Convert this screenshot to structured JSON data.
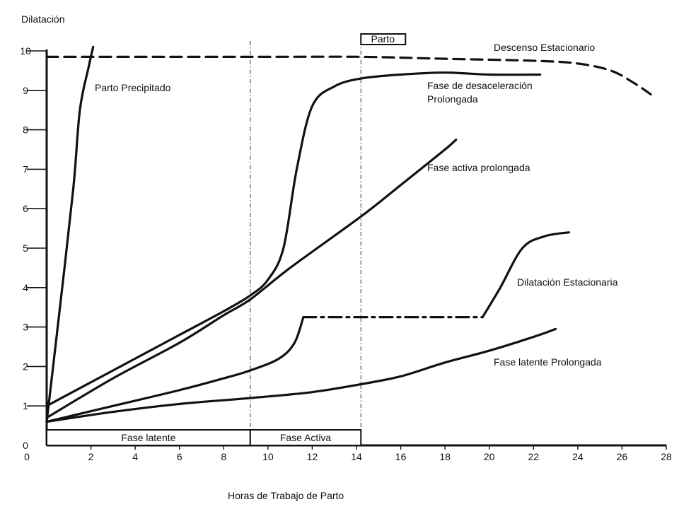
{
  "chart_data": {
    "type": "line",
    "ylabel": "Dilatación",
    "xlabel": "Horas de Trabajo de Parto",
    "xlim": [
      0,
      28
    ],
    "ylim": [
      0,
      10
    ],
    "x_ticks": [
      2,
      4,
      6,
      8,
      10,
      12,
      14,
      16,
      18,
      20,
      22,
      24,
      26,
      28
    ],
    "y_ticks": [
      0,
      1,
      2,
      3,
      4,
      5,
      6,
      7,
      8,
      9,
      10
    ],
    "phase_boxes": [
      {
        "label": "Fase latente",
        "x_start": 0,
        "x_end": 9.2
      },
      {
        "label": "Fase Activa",
        "x_start": 9.2,
        "x_end": 14.2
      }
    ],
    "markers": [
      {
        "label": "Parto",
        "x": 14.2
      }
    ],
    "vertical_refs": [
      9.2,
      14.2
    ],
    "series": [
      {
        "name": "Parto Precipitado",
        "style": "solid",
        "points": [
          [
            0,
            0.6
          ],
          [
            0.6,
            3.5
          ],
          [
            1.2,
            6.5
          ],
          [
            1.5,
            8.5
          ],
          [
            1.9,
            9.6
          ],
          [
            2.1,
            10.1
          ]
        ]
      },
      {
        "name": "Fase de desaceleración Prolongada",
        "style": "solid",
        "points": [
          [
            0,
            1.0
          ],
          [
            3,
            1.9
          ],
          [
            6,
            2.8
          ],
          [
            8,
            3.4
          ],
          [
            9.2,
            3.8
          ],
          [
            10,
            4.2
          ],
          [
            10.7,
            5.0
          ],
          [
            11.3,
            7.0
          ],
          [
            12,
            8.6
          ],
          [
            13,
            9.1
          ],
          [
            14.2,
            9.3
          ],
          [
            16,
            9.4
          ],
          [
            18,
            9.45
          ],
          [
            20,
            9.4
          ],
          [
            22.3,
            9.4
          ]
        ]
      },
      {
        "name": "Fase activa prolongada",
        "style": "solid",
        "points": [
          [
            0,
            0.7
          ],
          [
            3,
            1.7
          ],
          [
            6,
            2.6
          ],
          [
            8,
            3.3
          ],
          [
            9.2,
            3.7
          ],
          [
            11,
            4.5
          ],
          [
            14.2,
            5.8
          ],
          [
            16,
            6.6
          ],
          [
            18,
            7.5
          ],
          [
            18.5,
            7.75
          ]
        ]
      },
      {
        "name": "Dilatación Estacionaria",
        "style": "solid",
        "points": [
          [
            0,
            0.6
          ],
          [
            3,
            1.0
          ],
          [
            6,
            1.4
          ],
          [
            8,
            1.7
          ],
          [
            9.2,
            1.9
          ],
          [
            10.5,
            2.2
          ],
          [
            11.2,
            2.6
          ],
          [
            11.6,
            3.25
          ]
        ]
      },
      {
        "name": "Dilatación Estacionaria (meseta)",
        "style": "dash-dot",
        "points": [
          [
            11.6,
            3.25
          ],
          [
            19.7,
            3.25
          ]
        ]
      },
      {
        "name": "Dilatación Estacionaria (reanudación)",
        "style": "solid",
        "points": [
          [
            19.7,
            3.25
          ],
          [
            20.5,
            4.0
          ],
          [
            21.5,
            5.0
          ],
          [
            22.5,
            5.3
          ],
          [
            23.6,
            5.4
          ]
        ]
      },
      {
        "name": "Fase latente Prolongada",
        "style": "solid",
        "points": [
          [
            0,
            0.6
          ],
          [
            3,
            0.85
          ],
          [
            6,
            1.05
          ],
          [
            9.2,
            1.2
          ],
          [
            12,
            1.35
          ],
          [
            14.2,
            1.55
          ],
          [
            16,
            1.75
          ],
          [
            18,
            2.1
          ],
          [
            20,
            2.4
          ],
          [
            22,
            2.75
          ],
          [
            23,
            2.95
          ]
        ]
      },
      {
        "name": "Descenso Estacionario",
        "style": "dashed",
        "points": [
          [
            0,
            9.85
          ],
          [
            5,
            9.85
          ],
          [
            10,
            9.85
          ],
          [
            14.2,
            9.85
          ],
          [
            18,
            9.8
          ],
          [
            22,
            9.75
          ],
          [
            24,
            9.68
          ],
          [
            25.5,
            9.5
          ],
          [
            26.5,
            9.2
          ],
          [
            27.3,
            8.9
          ]
        ]
      }
    ],
    "annotations": [
      "Parto Precipitado",
      "Fase de desaceleración",
      "Prolongada",
      "Fase activa prolongada",
      "Dilatación Estacionaria",
      "Fase latente Prolongada",
      "Descenso Estacionario",
      "Parto"
    ]
  }
}
